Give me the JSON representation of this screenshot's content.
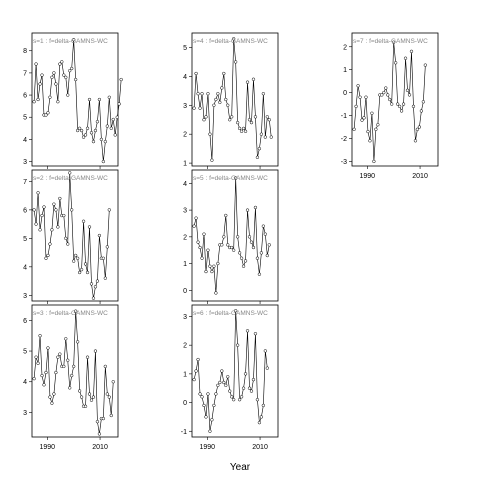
{
  "chart_data": {
    "type": "line",
    "xlabel": "Year",
    "xticks": [
      1990,
      2010
    ],
    "panels": [
      {
        "label": "s=1 : f=delta-GAMNS-WC",
        "ylim": [
          2.8,
          8.8
        ],
        "yticks": [
          3,
          4,
          5,
          6,
          7,
          8
        ],
        "values": [
          5.7,
          7.4,
          5.8,
          6.5,
          6.9,
          5.1,
          5.1,
          5.2,
          5.9,
          6.8,
          7.0,
          6.5,
          5.7,
          7.4,
          7.5,
          6.9,
          6.8,
          6.0,
          7.1,
          7.2,
          8.5,
          6.7,
          4.4,
          4.5,
          4.4,
          4.1,
          4.2,
          4.5,
          5.8,
          4.3,
          3.9,
          4.4,
          4.8,
          5.8,
          4.0,
          3.0,
          3.9,
          4.6,
          5.9,
          4.5,
          4.9,
          4.2,
          5.0,
          5.6,
          6.7
        ]
      },
      {
        "label": "s=2 : f=delta-GAMNS-WC",
        "ylim": [
          2.8,
          7.4
        ],
        "yticks": [
          3,
          4,
          5,
          6,
          7
        ],
        "values": [
          6.0,
          5.5,
          6.6,
          5.3,
          5.8,
          6.1,
          4.3,
          4.4,
          4.8,
          5.3,
          6.2,
          6.0,
          5.4,
          6.4,
          5.8,
          5.8,
          5.0,
          4.8,
          7.3,
          6.0,
          4.2,
          4.4,
          4.3,
          3.8,
          3.9,
          5.6,
          4.1,
          3.8,
          5.4,
          3.4,
          2.9,
          3.3,
          3.5,
          5.1,
          4.3,
          4.3,
          3.6,
          4.7,
          6.0
        ]
      },
      {
        "label": "s=3 : f=delta-GAMNS-WC",
        "ylim": [
          2.2,
          6.5
        ],
        "yticks": [
          3,
          4,
          5,
          6
        ],
        "values": [
          4.1,
          4.8,
          4.6,
          5.5,
          4.2,
          3.9,
          4.3,
          5.1,
          3.5,
          3.3,
          3.6,
          4.3,
          4.8,
          4.9,
          4.5,
          4.5,
          5.4,
          4.7,
          3.8,
          4.2,
          4.5,
          6.3,
          5.3,
          3.7,
          3.5,
          3.2,
          3.2,
          4.8,
          3.6,
          3.4,
          3.5,
          5.0,
          2.7,
          2.3,
          2.8,
          2.8,
          4.5,
          3.6,
          3.5,
          2.9,
          4.0
        ]
      },
      {
        "label": "s=4 : f=delta-GAMNS-WC",
        "ylim": [
          0.9,
          5.5
        ],
        "yticks": [
          1,
          2,
          3,
          4,
          5
        ],
        "values": [
          2.9,
          4.1,
          3.4,
          2.9,
          3.4,
          2.5,
          2.6,
          3.4,
          2.0,
          1.1,
          3.0,
          3.2,
          3.4,
          3.1,
          3.6,
          4.1,
          3.2,
          3.0,
          2.5,
          2.6,
          5.3,
          4.5,
          2.4,
          2.2,
          2.1,
          2.2,
          2.1,
          3.8,
          2.5,
          2.4,
          3.9,
          2.6,
          1.2,
          1.5,
          2.0,
          3.4,
          1.9,
          2.6,
          2.5,
          1.9
        ]
      },
      {
        "label": "s=5 : f=delta-GAMNS-WC",
        "ylim": [
          -0.4,
          4.5
        ],
        "yticks": [
          0,
          1,
          2,
          3,
          4
        ],
        "values": [
          2.4,
          2.7,
          1.8,
          1.6,
          1.2,
          2.1,
          0.7,
          1.5,
          0.9,
          0.7,
          0.9,
          -0.1,
          1.0,
          1.7,
          1.7,
          2.0,
          2.8,
          1.7,
          1.6,
          1.6,
          1.5,
          4.2,
          2.0,
          1.4,
          1.2,
          0.9,
          1.1,
          3.0,
          2.0,
          1.8,
          1.6,
          3.1,
          1.2,
          0.6,
          1.4,
          2.4,
          2.1,
          1.3,
          1.7
        ]
      },
      {
        "label": "s=6 : f=delta-GAMNS-WC",
        "ylim": [
          -1.2,
          3.4
        ],
        "yticks": [
          -1,
          0,
          1,
          2,
          3
        ],
        "values": [
          0.8,
          1.1,
          1.5,
          0.3,
          0.2,
          -0.1,
          -0.5,
          0.3,
          -1.0,
          -0.6,
          -0.1,
          0.3,
          0.6,
          0.7,
          1.1,
          0.7,
          0.6,
          0.9,
          0.4,
          0.2,
          0.1,
          3.2,
          2.0,
          0.1,
          0.2,
          0.5,
          1.0,
          2.5,
          0.5,
          0.4,
          0.8,
          2.4,
          0.1,
          -0.7,
          -0.5,
          -0.1,
          1.8,
          1.2
        ]
      },
      {
        "label": "s=7 : f=delta-GAMNS-WC",
        "ylim": [
          -3.2,
          2.6
        ],
        "yticks": [
          -3,
          -2,
          -1,
          0,
          1,
          2
        ],
        "values": [
          -1.6,
          -0.6,
          0.3,
          -0.2,
          -1.2,
          -1.1,
          -0.2,
          -1.7,
          -2.1,
          -0.9,
          -3.0,
          -1.6,
          -1.4,
          -0.1,
          -0.1,
          0.0,
          0.2,
          -0.1,
          -0.3,
          -0.5,
          2.2,
          1.3,
          -0.5,
          -0.6,
          -0.8,
          -0.5,
          1.5,
          0.1,
          -0.1,
          1.8,
          -0.6,
          -2.1,
          -1.6,
          -1.5,
          -0.8,
          -0.4,
          1.2
        ]
      }
    ]
  }
}
